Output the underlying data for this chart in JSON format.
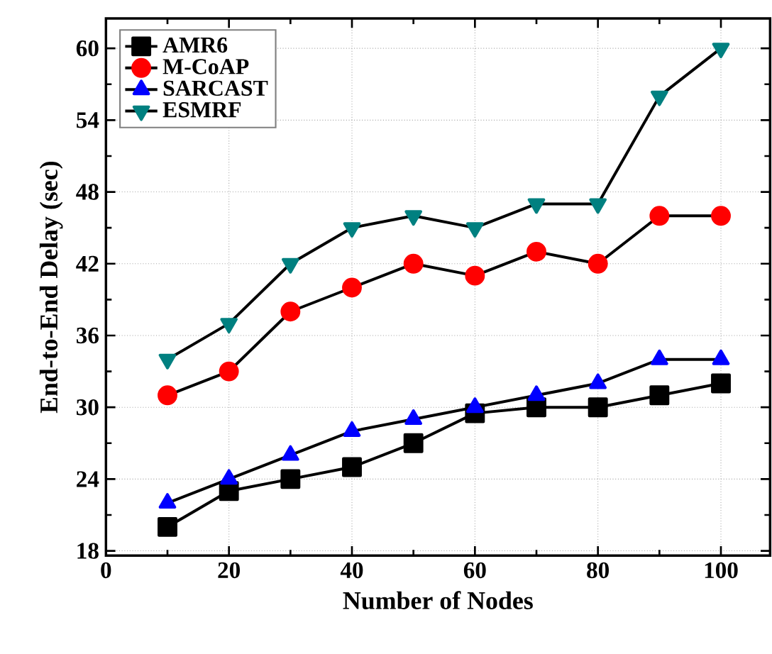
{
  "chart_data": {
    "type": "line",
    "xlabel": "Number of Nodes",
    "ylabel": "End-to-End Delay (sec)",
    "x": [
      10,
      20,
      30,
      40,
      50,
      60,
      70,
      80,
      90,
      100
    ],
    "series": [
      {
        "name": "AMR6",
        "color": "#000000",
        "marker": "square",
        "values": [
          20,
          23,
          24,
          25,
          27,
          29.5,
          30,
          30,
          31,
          32
        ]
      },
      {
        "name": "M-CoAP",
        "color": "#ff0000",
        "marker": "circle",
        "values": [
          31,
          33,
          38,
          40,
          42,
          41,
          43,
          42,
          46,
          46
        ]
      },
      {
        "name": "SARCAST",
        "color": "#0000ff",
        "marker": "triangle",
        "values": [
          22,
          24,
          26,
          28,
          29,
          30,
          31,
          32,
          34,
          34
        ]
      },
      {
        "name": "ESMRF",
        "color": "#008080",
        "marker": "triangle_down",
        "values": [
          34,
          37,
          42,
          45,
          46,
          45,
          47,
          47,
          56,
          60
        ]
      }
    ],
    "xlim": [
      0,
      108
    ],
    "ylim": [
      17.6,
      62.5
    ],
    "xticks": [
      0,
      20,
      40,
      60,
      80,
      100
    ],
    "yticks": [
      18,
      24,
      30,
      36,
      42,
      48,
      54,
      60
    ],
    "grid": true,
    "legend": "top left",
    "line_style": "solid"
  }
}
